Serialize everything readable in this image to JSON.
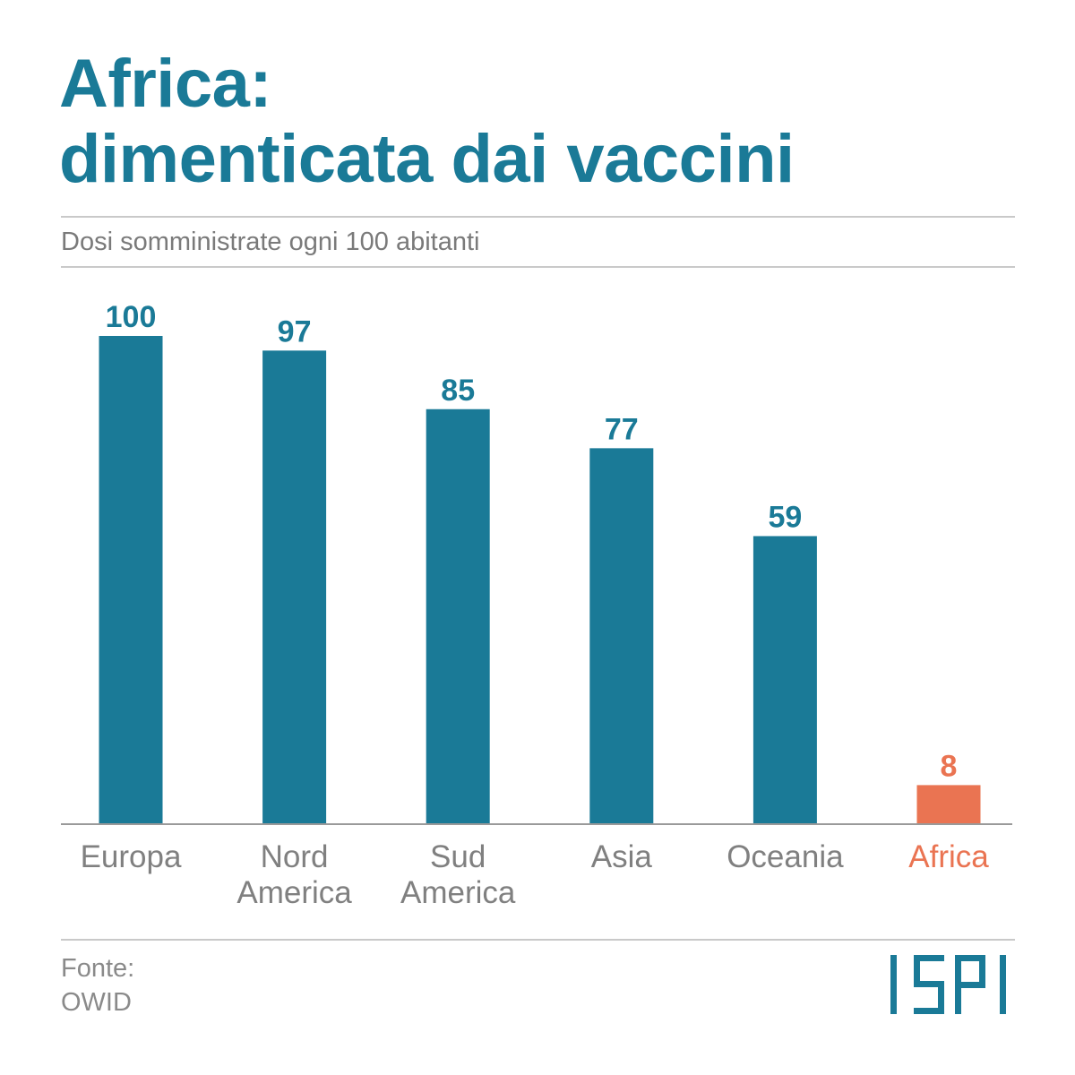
{
  "header": {
    "title_line1": "Africa:",
    "title_line2": "dimenticata dai vaccini",
    "subtitle": "Dosi somministrate ogni 100 abitanti"
  },
  "footer": {
    "source_label": "Fonte:",
    "source_name": "OWID",
    "logo_text": "ISPI"
  },
  "colors": {
    "primary": "#1a7a97",
    "highlight": "#ea7452",
    "axis": "#9a9a9a",
    "category_text": "#808080"
  },
  "chart_data": {
    "type": "bar",
    "title": "Africa: dimenticata dai vaccini",
    "subtitle": "Dosi somministrate ogni 100 abitanti",
    "categories": [
      [
        "Europa"
      ],
      [
        "Nord",
        "America"
      ],
      [
        "Sud",
        "America"
      ],
      [
        "Asia"
      ],
      [
        "Oceania"
      ],
      [
        "Africa"
      ]
    ],
    "values": [
      100,
      97,
      85,
      77,
      59,
      8
    ],
    "highlighted_index": 5,
    "ylim": [
      0,
      100
    ],
    "grid": false,
    "legend": "none",
    "data_labels": true
  }
}
